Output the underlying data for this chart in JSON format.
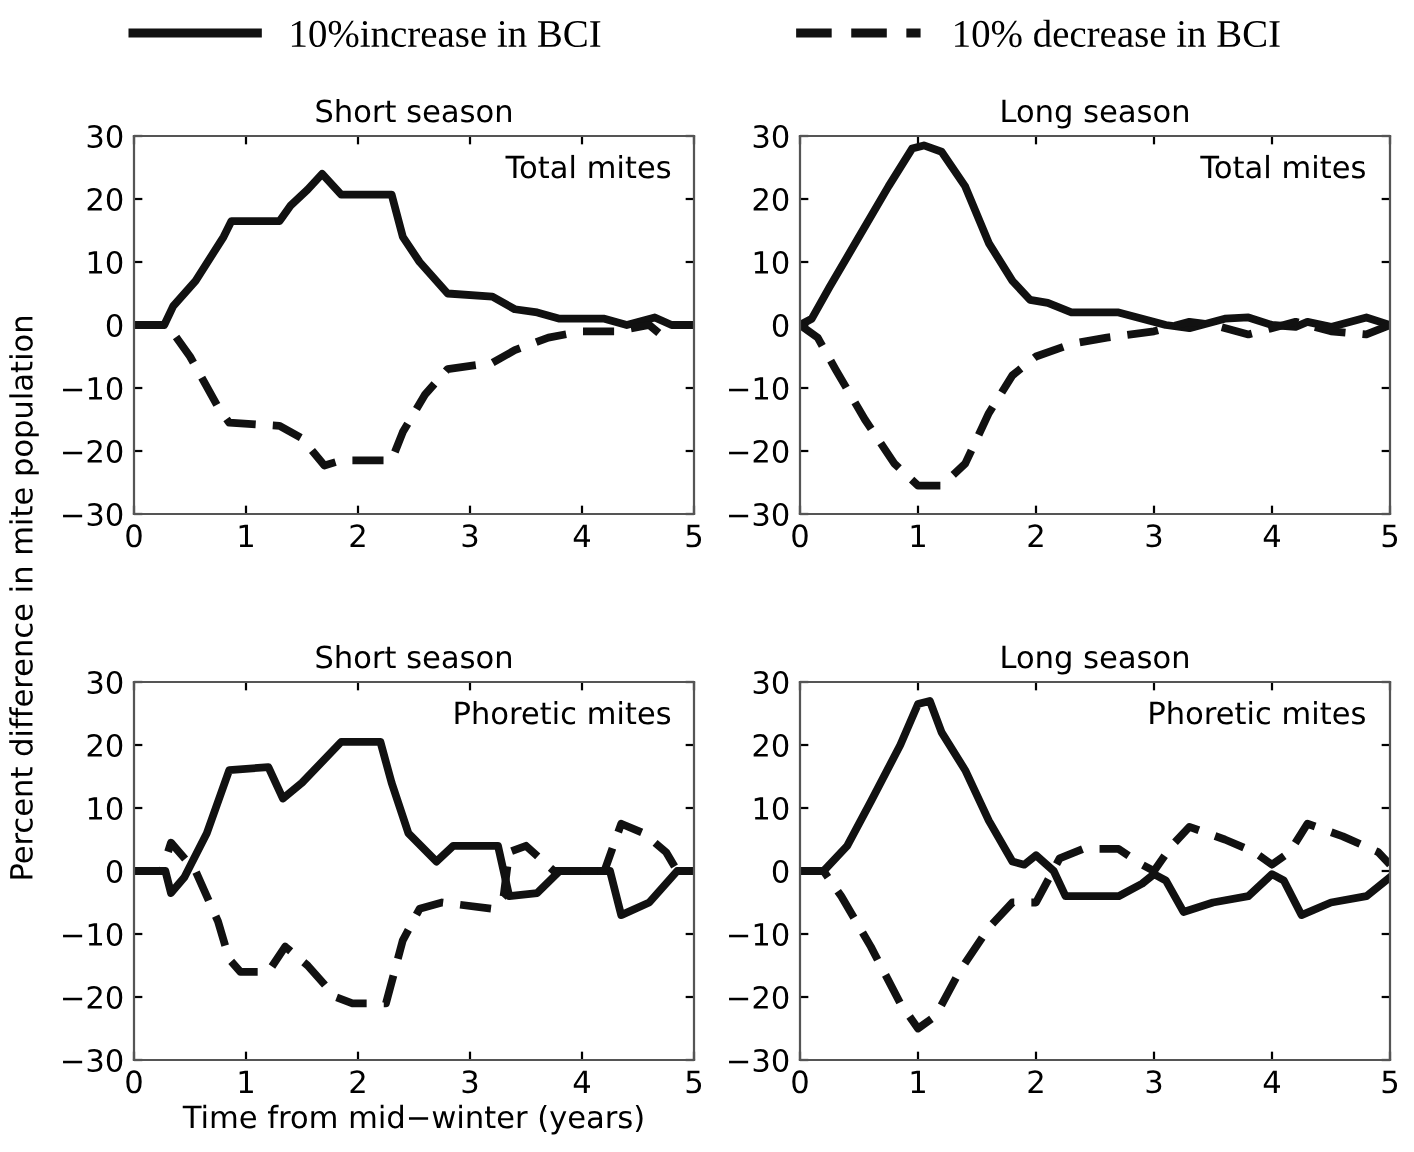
{
  "chart_data": [
    {
      "type": "line",
      "title": "Short season",
      "ylabel": "Percent difference in mite population",
      "legend": "top",
      "grid": false,
      "xlim": [
        0,
        5
      ],
      "ylim": [
        -30,
        30
      ],
      "xticks": [
        0,
        1,
        2,
        3,
        4,
        5
      ],
      "yticks": [
        -30,
        -20,
        -10,
        0,
        10,
        20,
        30
      ],
      "annotations": [
        "Total mites"
      ],
      "series": [
        {
          "name": "10%increase in BCI",
          "color": "#111111",
          "line_style": "solid",
          "x": [
            0,
            0.27,
            0.35,
            0.55,
            0.8,
            0.87,
            1.3,
            1.4,
            1.55,
            1.68,
            1.85,
            2.3,
            2.4,
            2.55,
            2.8,
            3.2,
            3.4,
            3.6,
            3.8,
            4.2,
            4.4,
            4.65,
            4.8,
            5
          ],
          "values": [
            0,
            0,
            3,
            7,
            14,
            16.5,
            16.5,
            19,
            21.5,
            24,
            20.7,
            20.7,
            14,
            10,
            5,
            4.5,
            2.5,
            2,
            1,
            1,
            0,
            1.2,
            0,
            0
          ]
        },
        {
          "name": "10% decrease in BCI",
          "color": "#111111",
          "line_style": "dashed",
          "x": [
            0,
            0.3,
            0.5,
            0.75,
            0.85,
            1.3,
            1.5,
            1.7,
            1.85,
            2.3,
            2.4,
            2.6,
            2.8,
            3.2,
            3.4,
            3.7,
            4.0,
            4.3,
            4.6,
            4.7
          ],
          "values": [
            0,
            0,
            -5,
            -13,
            -15.5,
            -16,
            -18,
            -22.3,
            -21.5,
            -21.5,
            -17,
            -11,
            -7,
            -6,
            -4,
            -2,
            -1,
            -1,
            0,
            -1.5
          ]
        }
      ]
    },
    {
      "type": "line",
      "title": "Long season",
      "grid": false,
      "xlim": [
        0,
        5
      ],
      "ylim": [
        -30,
        30
      ],
      "xticks": [
        0,
        1,
        2,
        3,
        4,
        5
      ],
      "yticks": [
        -30,
        -20,
        -10,
        0,
        10,
        20,
        30
      ],
      "annotations": [
        "Total mites"
      ],
      "series": [
        {
          "color": "#111111",
          "line_style": "solid",
          "x": [
            0,
            0.1,
            0.25,
            0.5,
            0.75,
            0.95,
            1.05,
            1.2,
            1.4,
            1.6,
            1.8,
            1.95,
            2.1,
            2.3,
            2.7,
            2.9,
            3.1,
            3.3,
            3.6,
            3.8,
            4.0,
            4.2,
            4.3,
            4.5,
            4.8,
            5
          ],
          "values": [
            0,
            1,
            6,
            14,
            22,
            28,
            28.5,
            27.5,
            22,
            13,
            7,
            4,
            3.5,
            2,
            2,
            1,
            0,
            -0.5,
            1,
            1.2,
            0,
            -0.3,
            0.5,
            -0.3,
            1.2,
            0
          ]
        },
        {
          "color": "#111111",
          "line_style": "dashed",
          "x": [
            0,
            0.15,
            0.3,
            0.55,
            0.8,
            1.0,
            1.2,
            1.4,
            1.6,
            1.8,
            2.0,
            2.3,
            2.6,
            3.0,
            3.3,
            3.5,
            3.8,
            4.2,
            4.5,
            4.8,
            5
          ],
          "values": [
            0,
            -2,
            -7,
            -15,
            -22,
            -25.5,
            -25.5,
            -22,
            -14,
            -8,
            -5,
            -3,
            -2,
            -1,
            0.5,
            0,
            -1.5,
            0.5,
            -1,
            -1.5,
            0
          ]
        }
      ]
    },
    {
      "type": "line",
      "title": "Short season",
      "xlabel": "Time from mid−winter (years)",
      "grid": false,
      "xlim": [
        0,
        5
      ],
      "ylim": [
        -30,
        30
      ],
      "xticks": [
        0,
        1,
        2,
        3,
        4,
        5
      ],
      "yticks": [
        -30,
        -20,
        -10,
        0,
        10,
        20,
        30
      ],
      "annotations": [
        "Phoretic mites"
      ],
      "series": [
        {
          "color": "#111111",
          "line_style": "solid",
          "x": [
            0,
            0.28,
            0.33,
            0.45,
            0.65,
            0.85,
            1.2,
            1.33,
            1.5,
            1.85,
            2.2,
            2.3,
            2.45,
            2.7,
            2.85,
            3.25,
            3.3,
            3.35,
            3.6,
            3.8,
            4.25,
            4.35,
            4.6,
            4.85,
            5
          ],
          "values": [
            0,
            0,
            -3.5,
            -1,
            6,
            16,
            16.5,
            11.5,
            14,
            20.5,
            20.5,
            14,
            6,
            1.5,
            4,
            4,
            0,
            -4,
            -3.5,
            0,
            0,
            -7,
            -5,
            0,
            0
          ]
        },
        {
          "color": "#111111",
          "line_style": "dashed",
          "x": [
            0,
            0.25,
            0.33,
            0.55,
            0.75,
            0.85,
            0.95,
            1.2,
            1.35,
            1.55,
            1.8,
            1.95,
            2.25,
            2.4,
            2.55,
            2.75,
            3.2,
            3.3,
            3.35,
            3.5,
            3.75,
            4.2,
            4.35,
            4.55,
            4.75,
            4.85,
            5
          ],
          "values": [
            0,
            0,
            4.5,
            0,
            -8,
            -14,
            -16,
            -16,
            -12,
            -15,
            -20,
            -21,
            -21,
            -11,
            -6,
            -5,
            -6,
            -4,
            3,
            4,
            0,
            0,
            7.5,
            6,
            3,
            0,
            0
          ]
        }
      ]
    },
    {
      "type": "line",
      "title": "Long season",
      "grid": false,
      "xlim": [
        0,
        5
      ],
      "ylim": [
        -30,
        30
      ],
      "xticks": [
        0,
        1,
        2,
        3,
        4,
        5
      ],
      "yticks": [
        -30,
        -20,
        -10,
        0,
        10,
        20,
        30
      ],
      "annotations": [
        "Phoretic mites"
      ],
      "series": [
        {
          "color": "#111111",
          "line_style": "solid",
          "x": [
            0,
            0.2,
            0.4,
            0.6,
            0.85,
            1.0,
            1.1,
            1.2,
            1.4,
            1.6,
            1.8,
            1.9,
            2.0,
            2.15,
            2.25,
            2.7,
            2.9,
            3.0,
            3.1,
            3.25,
            3.5,
            3.8,
            4.0,
            4.1,
            4.25,
            4.5,
            4.8,
            5
          ],
          "values": [
            0,
            0,
            4,
            11,
            20,
            26.5,
            27,
            22,
            16,
            8,
            1.5,
            1,
            2.5,
            0,
            -4,
            -4,
            -2,
            -0.5,
            -1.5,
            -6.5,
            -5,
            -4,
            -0.5,
            -1.5,
            -7,
            -5,
            -4,
            -1
          ]
        },
        {
          "color": "#111111",
          "line_style": "dashed",
          "x": [
            0,
            0.2,
            0.35,
            0.6,
            0.85,
            1.0,
            1.15,
            1.35,
            1.6,
            1.8,
            2.0,
            2.2,
            2.4,
            2.7,
            2.9,
            3.0,
            3.15,
            3.3,
            3.6,
            3.85,
            4.0,
            4.15,
            4.3,
            4.6,
            4.9,
            5
          ],
          "values": [
            0,
            0,
            -4,
            -12,
            -21,
            -25,
            -23,
            -16,
            -9,
            -5,
            -5,
            2,
            3.5,
            3.5,
            1,
            0,
            4,
            7,
            5,
            3,
            1,
            3,
            7.5,
            5.5,
            3,
            1
          ]
        }
      ]
    }
  ]
}
